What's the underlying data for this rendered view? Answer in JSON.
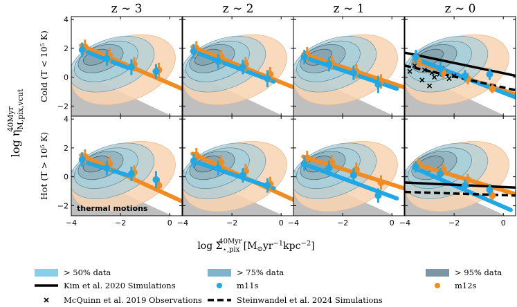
{
  "chart_data": {
    "type": "scatter",
    "columns": [
      "z ∼ 3",
      "z ∼ 2",
      "z ∼ 1",
      "z ∼ 0"
    ],
    "rows": [
      "Cold (T < 10⁵ K)",
      "Hot (T > 10⁵ K)"
    ],
    "xlabel": "log Σ̇⋆,pix^40Myr [M⊙yr⁻¹kpc⁻²]",
    "ylabel": "log η^40Myr_M,pix,vcut",
    "xlim": [
      -4,
      0.5
    ],
    "ylim": [
      -2.7,
      4.2
    ],
    "xticks": [
      {
        "v": -4,
        "label": "−4"
      },
      {
        "v": -2,
        "label": "−2"
      },
      {
        "v": 0,
        "label": "0"
      }
    ],
    "yticks": [
      {
        "v": -2,
        "label": "−2"
      },
      {
        "v": 0,
        "label": "0"
      },
      {
        "v": 2,
        "label": "2"
      },
      {
        "v": 4,
        "label": "4"
      }
    ],
    "annotation": "thermal motions",
    "colors": {
      "m11s": "#1fa7e6",
      "m12s": "#f08c21",
      "fill50": "#87ceeb",
      "fill75": "#7fb5cc",
      "fill95": "#7c97a3",
      "grey": "#bfbfbf",
      "contour_orange": "#f8d3b2",
      "contour_blue": "#a9cfdc"
    },
    "legend": [
      {
        "label": "> 50% data",
        "kind": "patch",
        "color": "#87ceeb"
      },
      {
        "label": "> 75% data",
        "kind": "patch",
        "color": "#7fb5cc"
      },
      {
        "label": "> 95% data",
        "kind": "patch",
        "color": "#7c97a3"
      },
      {
        "label": "Kim et al. 2020 Simulations",
        "kind": "solid"
      },
      {
        "label": "m11s",
        "kind": "dot",
        "color": "#1fa7e6"
      },
      {
        "label": "m12s",
        "kind": "dot",
        "color": "#f08c21"
      },
      {
        "label": "McQuinn et al. 2019 Observations",
        "kind": "cross"
      },
      {
        "label": "Steinwandel et al. 2024 Simulations",
        "kind": "dashed"
      }
    ],
    "panels": [
      {
        "row": 0,
        "col": 0,
        "m11s": {
          "x": [
            -3.5,
            -2.5,
            -1.5,
            -0.5
          ],
          "y": [
            1.9,
            1.3,
            0.7,
            0.4
          ],
          "err": [
            0.5,
            0.5,
            0.55,
            0.5
          ]
        },
        "m12s": {
          "x": [
            -3.5,
            -2.5,
            -1.5,
            -0.5
          ],
          "y": [
            2.1,
            1.5,
            0.9,
            0.5
          ],
          "err": [
            0.5,
            0.5,
            0.5,
            0.5
          ]
        },
        "fit_m11s": {
          "x": [
            -3.6,
            -1.7
          ],
          "y": [
            1.9,
            0.65
          ]
        },
        "fit_m12s": {
          "x": [
            -3.6,
            0.5
          ],
          "y": [
            2.2,
            -0.8
          ]
        }
      },
      {
        "row": 0,
        "col": 1,
        "m11s": {
          "x": [
            -3.5,
            -2.5,
            -1.5,
            -0.5
          ],
          "y": [
            1.8,
            1.1,
            0.7,
            -0.1
          ],
          "err": [
            0.5,
            0.5,
            0.5,
            0.6
          ]
        },
        "m12s": {
          "x": [
            -3.5,
            -2.5,
            -1.5,
            -0.5
          ],
          "y": [
            2.0,
            1.4,
            0.9,
            0.2
          ],
          "err": [
            0.5,
            0.5,
            0.5,
            0.5
          ]
        },
        "fit_m11s": {
          "x": [
            -3.6,
            -0.3
          ],
          "y": [
            1.8,
            -0.3
          ]
        },
        "fit_m12s": {
          "x": [
            -3.6,
            0.5
          ],
          "y": [
            2.1,
            -0.7
          ]
        }
      },
      {
        "row": 0,
        "col": 2,
        "m11s": {
          "x": [
            -3.5,
            -2.5,
            -1.5,
            -0.5
          ],
          "y": [
            1.4,
            0.9,
            0.3,
            -0.5
          ],
          "err": [
            0.5,
            0.5,
            0.5,
            0.6
          ]
        },
        "m12s": {
          "x": [
            -3.5,
            -2.5,
            -1.5,
            -0.5
          ],
          "y": [
            1.6,
            1.0,
            0.4,
            -0.3
          ],
          "err": [
            0.5,
            0.5,
            0.5,
            0.5
          ]
        },
        "fit_m11s": {
          "x": [
            -3.6,
            0.2
          ],
          "y": [
            1.4,
            -0.8
          ]
        },
        "fit_m12s": {
          "x": [
            -3.6,
            0.5
          ],
          "y": [
            1.6,
            -0.7
          ]
        }
      },
      {
        "row": 0,
        "col": 3,
        "m11s": {
          "x": [
            -3.5,
            -2.5,
            -1.5,
            -0.5
          ],
          "y": [
            1.4,
            0.6,
            0.1,
            0.2
          ],
          "err": [
            0.5,
            0.5,
            0.4,
            0.4
          ]
        },
        "m12s": {
          "x": [
            -3.5,
            -2.5,
            -1.5,
            -0.5
          ],
          "y": [
            1.1,
            0.3,
            -0.1,
            -0.8
          ],
          "err": [
            0.4,
            0.4,
            0.4,
            0.3
          ]
        },
        "fit_m11s": {
          "x": [
            -3.6,
            0.5
          ],
          "y": [
            1.3,
            -1.4
          ]
        },
        "fit_m12s": {
          "x": [
            -3.6,
            0.5
          ],
          "y": [
            1.1,
            -1.2
          ]
        },
        "kim": {
          "x": [
            -4,
            0.5
          ],
          "y": [
            1.7,
            0.1
          ]
        },
        "steinwandel": {
          "x": [
            -4,
            0.5
          ],
          "y": [
            0.8,
            -0.9
          ]
        },
        "mcquinn": {
          "x": [
            -3.8,
            -3.6,
            -3.3,
            -3.0,
            -2.8,
            -2.6,
            -2.4,
            -2.2,
            -2.0,
            -3.2,
            -2.9,
            -2.5
          ],
          "y": [
            0.4,
            0.8,
            -0.2,
            -0.6,
            0.0,
            0.2,
            0.3,
            -0.1,
            0.1,
            0.5,
            0.3,
            0.6
          ]
        }
      },
      {
        "row": 1,
        "col": 0,
        "m11s": {
          "x": [
            -3.5,
            -2.5,
            -1.5,
            -0.5
          ],
          "y": [
            1.2,
            0.6,
            0.2,
            -0.2
          ],
          "err": [
            0.5,
            0.5,
            0.5,
            0.6
          ]
        },
        "m12s": {
          "x": [
            -3.5,
            -2.5,
            -1.5,
            -0.5
          ],
          "y": [
            1.4,
            0.9,
            0.3,
            -0.6
          ],
          "err": [
            0.5,
            0.5,
            0.5,
            0.5
          ]
        },
        "fit_m11s": {
          "x": [
            -3.6,
            -1.7
          ],
          "y": [
            1.1,
            0.1
          ]
        },
        "fit_m12s": {
          "x": [
            -3.6,
            0.5
          ],
          "y": [
            1.5,
            -1.7
          ]
        }
      },
      {
        "row": 1,
        "col": 1,
        "m11s": {
          "x": [
            -3.5,
            -2.5,
            -1.5,
            -0.5
          ],
          "y": [
            1.1,
            0.6,
            0.1,
            -0.6
          ],
          "err": [
            0.5,
            0.5,
            0.5,
            0.5
          ]
        },
        "m12s": {
          "x": [
            -3.5,
            -2.5,
            -1.5,
            -0.5
          ],
          "y": [
            1.5,
            1.0,
            0.4,
            -0.5
          ],
          "err": [
            0.5,
            0.5,
            0.5,
            0.5
          ]
        },
        "fit_m11s": {
          "x": [
            -3.6,
            -0.3
          ],
          "y": [
            1.1,
            -0.8
          ]
        },
        "fit_m12s": {
          "x": [
            -3.6,
            0.5
          ],
          "y": [
            1.6,
            -1.6
          ]
        }
      },
      {
        "row": 1,
        "col": 2,
        "m11s": {
          "x": [
            -3.5,
            -2.5,
            -1.5,
            -0.5
          ],
          "y": [
            0.9,
            0.6,
            0.1,
            -1.3
          ],
          "err": [
            0.5,
            0.5,
            0.5,
            0.5
          ]
        },
        "m12s": {
          "x": [
            -3.5,
            -2.5,
            -1.5,
            -0.5
          ],
          "y": [
            1.3,
            1.0,
            0.5,
            -0.4
          ],
          "err": [
            0.5,
            0.5,
            0.5,
            0.5
          ]
        },
        "fit_m11s": {
          "x": [
            -3.6,
            0.2
          ],
          "y": [
            0.9,
            -1.5
          ]
        },
        "fit_m12s": {
          "x": [
            -3.6,
            0.5
          ],
          "y": [
            1.4,
            -0.8
          ]
        }
      },
      {
        "row": 1,
        "col": 3,
        "m11s": {
          "x": [
            -3.5,
            -2.5,
            -1.5,
            -0.5
          ],
          "y": [
            0.7,
            0.2,
            -0.6,
            -0.9
          ],
          "err": [
            0.4,
            0.4,
            0.4,
            0.4
          ]
        },
        "m12s": {
          "x": [
            -3.5,
            -2.5,
            -1.5,
            -0.5
          ],
          "y": [
            0.9,
            0.5,
            -0.2,
            -1.3
          ],
          "err": [
            0.4,
            0.4,
            0.4,
            0.3
          ]
        },
        "fit_m11s": {
          "x": [
            -3.6,
            0.3
          ],
          "y": [
            0.6,
            -2.3
          ]
        },
        "fit_m12s": {
          "x": [
            -3.6,
            0.5
          ],
          "y": [
            0.9,
            -1.2
          ]
        },
        "kim": {
          "x": [
            -4,
            0.5
          ],
          "y": [
            -0.4,
            -0.75
          ]
        },
        "steinwandel": {
          "x": [
            -4,
            0.5
          ],
          "y": [
            -1.05,
            -1.3
          ]
        }
      }
    ]
  }
}
